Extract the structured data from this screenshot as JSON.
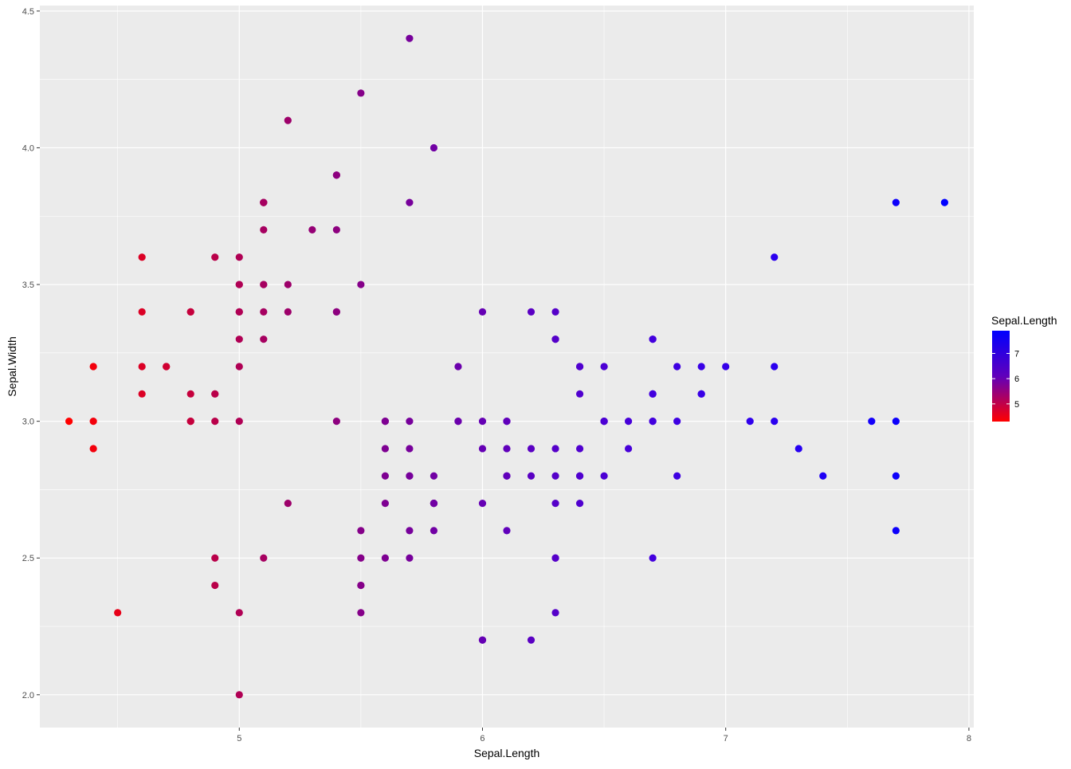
{
  "chart_data": {
    "type": "scatter",
    "title": "",
    "xlabel": "Sepal.Length",
    "ylabel": "Sepal.Width",
    "xlim": [
      4.18,
      8.02
    ],
    "ylim": [
      1.88,
      4.52
    ],
    "x_ticks": [
      5,
      6,
      7,
      8
    ],
    "y_ticks": [
      2.0,
      2.5,
      3.0,
      3.5,
      4.0,
      4.5
    ],
    "x_tick_labels": [
      "5",
      "6",
      "7",
      "8"
    ],
    "y_tick_labels": [
      "2.0",
      "2.5",
      "3.0",
      "3.5",
      "4.0",
      "4.5"
    ],
    "grid": true,
    "background": "#ebebeb",
    "grid_color": "#ffffff",
    "legend": {
      "title": "Sepal.Length",
      "position": "right",
      "type": "colorbar",
      "low_color": "#ff0000",
      "high_color": "#0000ff",
      "range": [
        4.3,
        7.9
      ],
      "breaks": [
        5,
        6,
        7
      ],
      "break_labels": [
        "5",
        "6",
        "7"
      ]
    },
    "color_mapping": "Sepal.Length",
    "points": [
      [
        5.1,
        3.5
      ],
      [
        4.9,
        3.0
      ],
      [
        4.7,
        3.2
      ],
      [
        4.6,
        3.1
      ],
      [
        5.0,
        3.6
      ],
      [
        5.4,
        3.9
      ],
      [
        4.6,
        3.4
      ],
      [
        5.0,
        3.4
      ],
      [
        4.4,
        2.9
      ],
      [
        4.9,
        3.1
      ],
      [
        5.4,
        3.7
      ],
      [
        4.8,
        3.4
      ],
      [
        4.8,
        3.0
      ],
      [
        4.3,
        3.0
      ],
      [
        5.8,
        4.0
      ],
      [
        5.7,
        4.4
      ],
      [
        5.4,
        3.9
      ],
      [
        5.1,
        3.5
      ],
      [
        5.7,
        3.8
      ],
      [
        5.1,
        3.8
      ],
      [
        5.4,
        3.4
      ],
      [
        5.1,
        3.7
      ],
      [
        4.6,
        3.6
      ],
      [
        5.1,
        3.3
      ],
      [
        4.8,
        3.4
      ],
      [
        5.0,
        3.0
      ],
      [
        5.0,
        3.4
      ],
      [
        5.2,
        3.5
      ],
      [
        5.2,
        3.4
      ],
      [
        4.7,
        3.2
      ],
      [
        4.8,
        3.1
      ],
      [
        5.4,
        3.4
      ],
      [
        5.2,
        4.1
      ],
      [
        5.5,
        4.2
      ],
      [
        4.9,
        3.1
      ],
      [
        5.0,
        3.2
      ],
      [
        5.5,
        3.5
      ],
      [
        4.9,
        3.6
      ],
      [
        4.4,
        3.0
      ],
      [
        5.1,
        3.4
      ],
      [
        5.0,
        3.5
      ],
      [
        4.5,
        2.3
      ],
      [
        4.4,
        3.2
      ],
      [
        5.0,
        3.5
      ],
      [
        5.1,
        3.8
      ],
      [
        4.8,
        3.0
      ],
      [
        5.1,
        3.8
      ],
      [
        4.6,
        3.2
      ],
      [
        5.3,
        3.7
      ],
      [
        5.0,
        3.3
      ],
      [
        7.0,
        3.2
      ],
      [
        6.4,
        3.2
      ],
      [
        6.9,
        3.1
      ],
      [
        5.5,
        2.3
      ],
      [
        6.5,
        2.8
      ],
      [
        5.7,
        2.8
      ],
      [
        6.3,
        3.3
      ],
      [
        4.9,
        2.4
      ],
      [
        6.6,
        2.9
      ],
      [
        5.2,
        2.7
      ],
      [
        5.0,
        2.0
      ],
      [
        5.9,
        3.0
      ],
      [
        6.0,
        2.2
      ],
      [
        6.1,
        2.9
      ],
      [
        5.6,
        2.9
      ],
      [
        6.7,
        3.1
      ],
      [
        5.6,
        3.0
      ],
      [
        5.8,
        2.7
      ],
      [
        6.2,
        2.2
      ],
      [
        5.6,
        2.5
      ],
      [
        5.9,
        3.2
      ],
      [
        6.1,
        2.8
      ],
      [
        6.3,
        2.5
      ],
      [
        6.1,
        2.8
      ],
      [
        6.4,
        2.9
      ],
      [
        6.6,
        3.0
      ],
      [
        6.8,
        2.8
      ],
      [
        6.7,
        3.0
      ],
      [
        6.0,
        2.9
      ],
      [
        5.7,
        2.6
      ],
      [
        5.5,
        2.4
      ],
      [
        5.5,
        2.4
      ],
      [
        5.8,
        2.7
      ],
      [
        6.0,
        2.7
      ],
      [
        5.4,
        3.0
      ],
      [
        6.0,
        3.4
      ],
      [
        6.7,
        3.1
      ],
      [
        6.3,
        2.3
      ],
      [
        5.6,
        3.0
      ],
      [
        5.5,
        2.5
      ],
      [
        5.5,
        2.6
      ],
      [
        6.1,
        3.0
      ],
      [
        5.8,
        2.6
      ],
      [
        5.0,
        2.3
      ],
      [
        5.6,
        2.7
      ],
      [
        5.7,
        3.0
      ],
      [
        5.7,
        2.9
      ],
      [
        6.2,
        2.9
      ],
      [
        5.1,
        2.5
      ],
      [
        5.7,
        2.8
      ],
      [
        6.3,
        3.3
      ],
      [
        5.8,
        2.7
      ],
      [
        7.1,
        3.0
      ],
      [
        6.3,
        2.9
      ],
      [
        6.5,
        3.0
      ],
      [
        7.6,
        3.0
      ],
      [
        4.9,
        2.5
      ],
      [
        7.3,
        2.9
      ],
      [
        6.7,
        2.5
      ],
      [
        7.2,
        3.6
      ],
      [
        6.5,
        3.2
      ],
      [
        6.4,
        2.7
      ],
      [
        6.8,
        3.0
      ],
      [
        5.7,
        2.5
      ],
      [
        5.8,
        2.8
      ],
      [
        6.4,
        3.2
      ],
      [
        6.5,
        3.0
      ],
      [
        7.7,
        3.8
      ],
      [
        7.7,
        2.6
      ],
      [
        6.0,
        2.2
      ],
      [
        6.9,
        3.2
      ],
      [
        5.6,
        2.8
      ],
      [
        7.7,
        2.8
      ],
      [
        6.3,
        2.7
      ],
      [
        6.7,
        3.3
      ],
      [
        7.2,
        3.2
      ],
      [
        6.2,
        2.8
      ],
      [
        6.1,
        3.0
      ],
      [
        6.4,
        2.8
      ],
      [
        7.2,
        3.0
      ],
      [
        7.4,
        2.8
      ],
      [
        7.9,
        3.8
      ],
      [
        6.4,
        2.8
      ],
      [
        6.3,
        2.8
      ],
      [
        6.1,
        2.6
      ],
      [
        7.7,
        3.0
      ],
      [
        6.3,
        3.4
      ],
      [
        6.4,
        3.1
      ],
      [
        6.0,
        3.0
      ],
      [
        6.9,
        3.1
      ],
      [
        6.7,
        3.1
      ],
      [
        6.9,
        3.1
      ],
      [
        5.8,
        2.7
      ],
      [
        6.8,
        3.2
      ],
      [
        6.7,
        3.3
      ],
      [
        6.7,
        3.0
      ],
      [
        6.3,
        2.5
      ],
      [
        6.5,
        3.0
      ],
      [
        6.2,
        3.4
      ],
      [
        5.9,
        3.0
      ]
    ]
  }
}
